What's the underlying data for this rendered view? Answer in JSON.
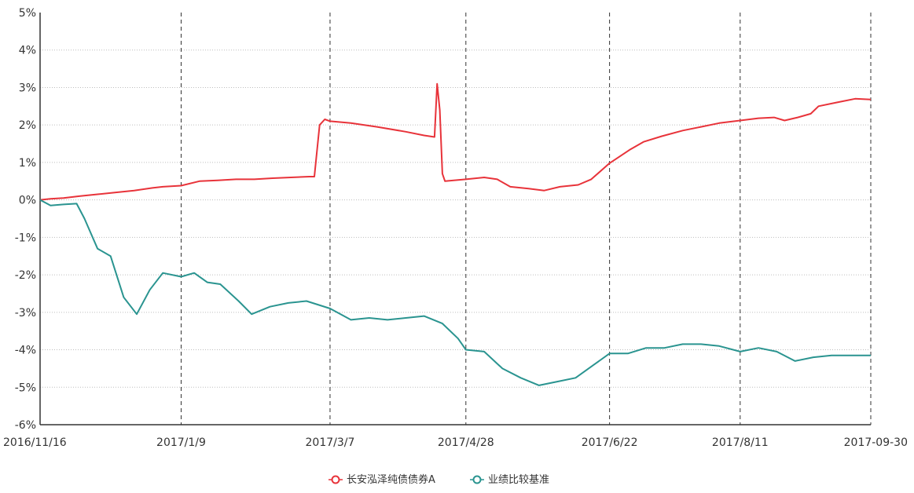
{
  "chart_data": {
    "type": "line",
    "x_ticks": [
      "2016/11/16",
      "2017/1/9",
      "2017/3/7",
      "2017/4/28",
      "2017/6/22",
      "2017/8/11",
      "2017-09-30"
    ],
    "y_ticks": [
      "5%",
      "4%",
      "3%",
      "2%",
      "1%",
      "0%",
      "-1%",
      "-2%",
      "-3%",
      "-4%",
      "-5%",
      "-6%"
    ],
    "ylim": [
      -6,
      5
    ],
    "grid": true,
    "legend_position": "bottom",
    "series": [
      {
        "name": "长安泓泽纯债债券A",
        "color": "#e8333a",
        "marker_color": "#e8333a",
        "points": [
          [
            "2016/11/16",
            0.0
          ],
          [
            "2016/11/20",
            0.03
          ],
          [
            "2016/11/25",
            0.05
          ],
          [
            "2016/12/01",
            0.1
          ],
          [
            "2016/12/08",
            0.15
          ],
          [
            "2016/12/15",
            0.2
          ],
          [
            "2016/12/22",
            0.25
          ],
          [
            "2016/12/29",
            0.32
          ],
          [
            "2017/01/02",
            0.35
          ],
          [
            "2017/01/09",
            0.38
          ],
          [
            "2017/01/16",
            0.5
          ],
          [
            "2017/01/23",
            0.52
          ],
          [
            "2017/01/30",
            0.55
          ],
          [
            "2017/02/06",
            0.55
          ],
          [
            "2017/02/13",
            0.58
          ],
          [
            "2017/02/20",
            0.6
          ],
          [
            "2017/02/27",
            0.62
          ],
          [
            "2017/03/01",
            0.62
          ],
          [
            "2017/03/03",
            2.0
          ],
          [
            "2017/03/05",
            2.15
          ],
          [
            "2017/03/07",
            2.1
          ],
          [
            "2017/03/15",
            2.05
          ],
          [
            "2017/03/25",
            1.95
          ],
          [
            "2017/04/05",
            1.82
          ],
          [
            "2017/04/12",
            1.72
          ],
          [
            "2017/04/16",
            1.68
          ],
          [
            "2017/04/17",
            3.1
          ],
          [
            "2017/04/18",
            2.4
          ],
          [
            "2017/04/19",
            0.7
          ],
          [
            "2017/04/20",
            0.5
          ],
          [
            "2017/04/28",
            0.55
          ],
          [
            "2017/05/05",
            0.6
          ],
          [
            "2017/05/10",
            0.55
          ],
          [
            "2017/05/15",
            0.35
          ],
          [
            "2017/05/22",
            0.3
          ],
          [
            "2017/05/28",
            0.25
          ],
          [
            "2017/06/03",
            0.35
          ],
          [
            "2017/06/10",
            0.4
          ],
          [
            "2017/06/15",
            0.55
          ],
          [
            "2017/06/22",
            0.98
          ],
          [
            "2017/06/30",
            1.35
          ],
          [
            "2017/07/05",
            1.55
          ],
          [
            "2017/07/12",
            1.7
          ],
          [
            "2017/07/20",
            1.85
          ],
          [
            "2017/07/27",
            1.95
          ],
          [
            "2017/08/03",
            2.05
          ],
          [
            "2017/08/11",
            2.12
          ],
          [
            "2017/08/18",
            2.18
          ],
          [
            "2017/08/24",
            2.2
          ],
          [
            "2017/08/28",
            2.12
          ],
          [
            "2017/09/02",
            2.2
          ],
          [
            "2017/09/07",
            2.3
          ],
          [
            "2017/09/10",
            2.5
          ],
          [
            "2017/09/17",
            2.6
          ],
          [
            "2017/09/24",
            2.7
          ],
          [
            "2017/09/30",
            2.68
          ]
        ]
      },
      {
        "name": "业绩比较基准",
        "color": "#2a9490",
        "marker_color": "#2a9490",
        "points": [
          [
            "2016/11/16",
            0.0
          ],
          [
            "2016/11/20",
            -0.15
          ],
          [
            "2016/11/25",
            -0.12
          ],
          [
            "2016/11/30",
            -0.1
          ],
          [
            "2016/12/03",
            -0.5
          ],
          [
            "2016/12/08",
            -1.3
          ],
          [
            "2016/12/13",
            -1.5
          ],
          [
            "2016/12/18",
            -2.6
          ],
          [
            "2016/12/23",
            -3.05
          ],
          [
            "2016/12/28",
            -2.4
          ],
          [
            "2017/01/02",
            -1.95
          ],
          [
            "2017/01/09",
            -2.05
          ],
          [
            "2017/01/14",
            -1.95
          ],
          [
            "2017/01/19",
            -2.2
          ],
          [
            "2017/01/24",
            -2.25
          ],
          [
            "2017/01/31",
            -2.7
          ],
          [
            "2017/02/05",
            -3.05
          ],
          [
            "2017/02/12",
            -2.85
          ],
          [
            "2017/02/19",
            -2.75
          ],
          [
            "2017/02/26",
            -2.7
          ],
          [
            "2017/03/07",
            -2.9
          ],
          [
            "2017/03/15",
            -3.2
          ],
          [
            "2017/03/22",
            -3.15
          ],
          [
            "2017/03/29",
            -3.2
          ],
          [
            "2017/04/05",
            -3.15
          ],
          [
            "2017/04/12",
            -3.1
          ],
          [
            "2017/04/19",
            -3.3
          ],
          [
            "2017/04/25",
            -3.7
          ],
          [
            "2017/04/28",
            -4.0
          ],
          [
            "2017/05/05",
            -4.05
          ],
          [
            "2017/05/12",
            -4.5
          ],
          [
            "2017/05/19",
            -4.75
          ],
          [
            "2017/05/26",
            -4.95
          ],
          [
            "2017/06/02",
            -4.85
          ],
          [
            "2017/06/09",
            -4.75
          ],
          [
            "2017/06/16",
            -4.4
          ],
          [
            "2017/06/22",
            -4.1
          ],
          [
            "2017/06/29",
            -4.1
          ],
          [
            "2017/07/06",
            -3.95
          ],
          [
            "2017/07/13",
            -3.95
          ],
          [
            "2017/07/20",
            -3.85
          ],
          [
            "2017/07/27",
            -3.85
          ],
          [
            "2017/08/03",
            -3.9
          ],
          [
            "2017/08/11",
            -4.05
          ],
          [
            "2017/08/18",
            -3.95
          ],
          [
            "2017/08/25",
            -4.05
          ],
          [
            "2017/09/01",
            -4.3
          ],
          [
            "2017/09/08",
            -4.2
          ],
          [
            "2017/09/15",
            -4.15
          ],
          [
            "2017/09/22",
            -4.15
          ],
          [
            "2017/09/30",
            -4.15
          ]
        ]
      }
    ]
  }
}
